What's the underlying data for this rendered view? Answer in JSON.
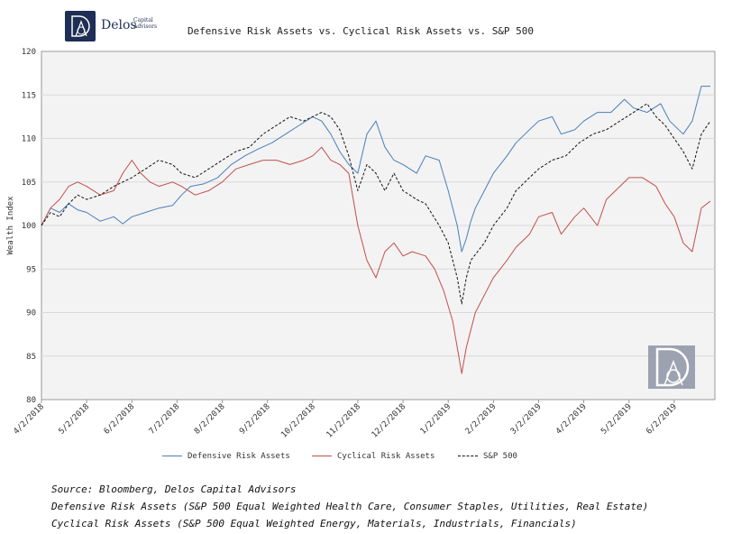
{
  "logo": {
    "name": "Delos",
    "sub": "Capital Advisors"
  },
  "chart_data": {
    "type": "line",
    "title": "Defensive Risk Assets vs. Cyclical Risk Assets vs. S&P 500",
    "xlabel": "",
    "ylabel": "Wealth Index",
    "ylim": [
      80,
      120
    ],
    "yticks": [
      80,
      85,
      90,
      95,
      100,
      105,
      110,
      115,
      120
    ],
    "x_tick_labels": [
      "4/2/2018",
      "5/2/2018",
      "6/2/2018",
      "7/2/2018",
      "8/2/2018",
      "9/2/2018",
      "10/2/2018",
      "11/2/2018",
      "12/2/2018",
      "1/2/2019",
      "2/2/2019",
      "3/2/2019",
      "4/2/2019",
      "5/2/2019",
      "6/2/2019"
    ],
    "x_range_months": [
      0,
      14.9
    ],
    "grid": "horizontal",
    "series": [
      {
        "name": "Defensive Risk Assets",
        "color": "#4a7ebb",
        "style": "solid",
        "points": [
          [
            0,
            100
          ],
          [
            0.2,
            102
          ],
          [
            0.4,
            101.5
          ],
          [
            0.6,
            102.5
          ],
          [
            0.8,
            101.8
          ],
          [
            1.0,
            101.5
          ],
          [
            1.3,
            100.5
          ],
          [
            1.6,
            101
          ],
          [
            1.8,
            100.2
          ],
          [
            2.0,
            101
          ],
          [
            2.3,
            101.5
          ],
          [
            2.6,
            102
          ],
          [
            2.9,
            102.3
          ],
          [
            3.1,
            103.5
          ],
          [
            3.3,
            104.5
          ],
          [
            3.6,
            104.8
          ],
          [
            3.9,
            105.5
          ],
          [
            4.2,
            107
          ],
          [
            4.5,
            108
          ],
          [
            4.8,
            108.8
          ],
          [
            5.1,
            109.5
          ],
          [
            5.4,
            110.5
          ],
          [
            5.7,
            111.5
          ],
          [
            6.0,
            112.5
          ],
          [
            6.2,
            112
          ],
          [
            6.4,
            110.5
          ],
          [
            6.6,
            108.5
          ],
          [
            6.8,
            107
          ],
          [
            7.0,
            106
          ],
          [
            7.2,
            110.5
          ],
          [
            7.4,
            112
          ],
          [
            7.6,
            109
          ],
          [
            7.8,
            107.5
          ],
          [
            8.0,
            107
          ],
          [
            8.3,
            106
          ],
          [
            8.5,
            108
          ],
          [
            8.8,
            107.5
          ],
          [
            9.0,
            104
          ],
          [
            9.2,
            100
          ],
          [
            9.3,
            97
          ],
          [
            9.4,
            98.5
          ],
          [
            9.5,
            100.5
          ],
          [
            9.6,
            102
          ],
          [
            9.8,
            104
          ],
          [
            10.0,
            106
          ],
          [
            10.3,
            108
          ],
          [
            10.5,
            109.5
          ],
          [
            10.8,
            111
          ],
          [
            11.0,
            112
          ],
          [
            11.3,
            112.5
          ],
          [
            11.5,
            110.5
          ],
          [
            11.8,
            111
          ],
          [
            12.0,
            112
          ],
          [
            12.3,
            113
          ],
          [
            12.6,
            113
          ],
          [
            12.9,
            114.5
          ],
          [
            13.1,
            113.5
          ],
          [
            13.4,
            113
          ],
          [
            13.7,
            114
          ],
          [
            13.9,
            112
          ],
          [
            14.2,
            110.5
          ],
          [
            14.4,
            112
          ],
          [
            14.6,
            116
          ],
          [
            14.8,
            116
          ]
        ]
      },
      {
        "name": "Cyclical Risk Assets",
        "color": "#c0504d",
        "style": "solid",
        "points": [
          [
            0,
            100
          ],
          [
            0.2,
            102
          ],
          [
            0.4,
            103
          ],
          [
            0.6,
            104.5
          ],
          [
            0.8,
            105
          ],
          [
            1.0,
            104.5
          ],
          [
            1.3,
            103.5
          ],
          [
            1.6,
            104
          ],
          [
            1.8,
            106
          ],
          [
            2.0,
            107.5
          ],
          [
            2.2,
            106
          ],
          [
            2.4,
            105
          ],
          [
            2.6,
            104.5
          ],
          [
            2.9,
            105
          ],
          [
            3.1,
            104.5
          ],
          [
            3.4,
            103.5
          ],
          [
            3.7,
            104
          ],
          [
            4.0,
            105
          ],
          [
            4.3,
            106.5
          ],
          [
            4.6,
            107
          ],
          [
            4.9,
            107.5
          ],
          [
            5.2,
            107.5
          ],
          [
            5.5,
            107
          ],
          [
            5.8,
            107.5
          ],
          [
            6.0,
            108
          ],
          [
            6.2,
            109
          ],
          [
            6.4,
            107.5
          ],
          [
            6.6,
            107
          ],
          [
            6.8,
            106
          ],
          [
            7.0,
            100
          ],
          [
            7.2,
            96
          ],
          [
            7.4,
            94
          ],
          [
            7.6,
            97
          ],
          [
            7.8,
            98
          ],
          [
            8.0,
            96.5
          ],
          [
            8.2,
            97
          ],
          [
            8.5,
            96.5
          ],
          [
            8.7,
            95
          ],
          [
            8.9,
            92.5
          ],
          [
            9.1,
            89
          ],
          [
            9.2,
            86
          ],
          [
            9.3,
            83
          ],
          [
            9.4,
            86
          ],
          [
            9.5,
            88
          ],
          [
            9.6,
            90
          ],
          [
            9.8,
            92
          ],
          [
            10.0,
            94
          ],
          [
            10.3,
            96
          ],
          [
            10.5,
            97.5
          ],
          [
            10.8,
            99
          ],
          [
            11.0,
            101
          ],
          [
            11.3,
            101.5
          ],
          [
            11.5,
            99
          ],
          [
            11.8,
            101
          ],
          [
            12.0,
            102
          ],
          [
            12.3,
            100
          ],
          [
            12.5,
            103
          ],
          [
            12.8,
            104.5
          ],
          [
            13.0,
            105.5
          ],
          [
            13.3,
            105.5
          ],
          [
            13.6,
            104.5
          ],
          [
            13.8,
            102.5
          ],
          [
            14.0,
            101
          ],
          [
            14.2,
            98
          ],
          [
            14.4,
            97
          ],
          [
            14.6,
            102
          ],
          [
            14.8,
            102.8
          ]
        ]
      },
      {
        "name": "S&P 500",
        "color": "#111111",
        "style": "dashed",
        "points": [
          [
            0,
            100
          ],
          [
            0.2,
            101.5
          ],
          [
            0.4,
            101
          ],
          [
            0.6,
            102.5
          ],
          [
            0.8,
            103.5
          ],
          [
            1.0,
            103
          ],
          [
            1.3,
            103.5
          ],
          [
            1.6,
            104.5
          ],
          [
            1.8,
            105
          ],
          [
            2.0,
            105.5
          ],
          [
            2.3,
            106.5
          ],
          [
            2.6,
            107.5
          ],
          [
            2.9,
            107
          ],
          [
            3.1,
            106
          ],
          [
            3.4,
            105.5
          ],
          [
            3.7,
            106.5
          ],
          [
            4.0,
            107.5
          ],
          [
            4.3,
            108.5
          ],
          [
            4.6,
            109
          ],
          [
            4.9,
            110.5
          ],
          [
            5.2,
            111.5
          ],
          [
            5.5,
            112.5
          ],
          [
            5.8,
            112
          ],
          [
            6.0,
            112.5
          ],
          [
            6.2,
            113
          ],
          [
            6.4,
            112.5
          ],
          [
            6.6,
            111
          ],
          [
            6.8,
            108
          ],
          [
            7.0,
            104
          ],
          [
            7.2,
            107
          ],
          [
            7.4,
            106
          ],
          [
            7.6,
            104
          ],
          [
            7.8,
            106
          ],
          [
            8.0,
            104
          ],
          [
            8.3,
            103
          ],
          [
            8.5,
            102.5
          ],
          [
            8.8,
            100
          ],
          [
            9.0,
            98
          ],
          [
            9.2,
            94
          ],
          [
            9.3,
            91
          ],
          [
            9.4,
            94
          ],
          [
            9.5,
            96
          ],
          [
            9.8,
            98
          ],
          [
            10.0,
            100
          ],
          [
            10.3,
            102
          ],
          [
            10.5,
            104
          ],
          [
            10.8,
            105.5
          ],
          [
            11.0,
            106.5
          ],
          [
            11.3,
            107.5
          ],
          [
            11.6,
            108
          ],
          [
            11.9,
            109.5
          ],
          [
            12.2,
            110.5
          ],
          [
            12.5,
            111
          ],
          [
            12.8,
            112
          ],
          [
            13.1,
            113
          ],
          [
            13.4,
            114
          ],
          [
            13.6,
            112.5
          ],
          [
            13.8,
            111.5
          ],
          [
            14.0,
            110
          ],
          [
            14.2,
            108.5
          ],
          [
            14.4,
            106.5
          ],
          [
            14.6,
            110.5
          ],
          [
            14.8,
            112
          ]
        ]
      }
    ]
  },
  "notes": {
    "source": "Source: Bloomberg, Delos Capital Advisors",
    "defensive": "Defensive Risk Assets (S&P 500 Equal Weighted Health Care, Consumer Staples, Utilities, Real Estate)",
    "cyclical": "Cyclical Risk Assets (S&P 500 Equal Weighted Energy, Materials, Industrials, Financials)"
  }
}
